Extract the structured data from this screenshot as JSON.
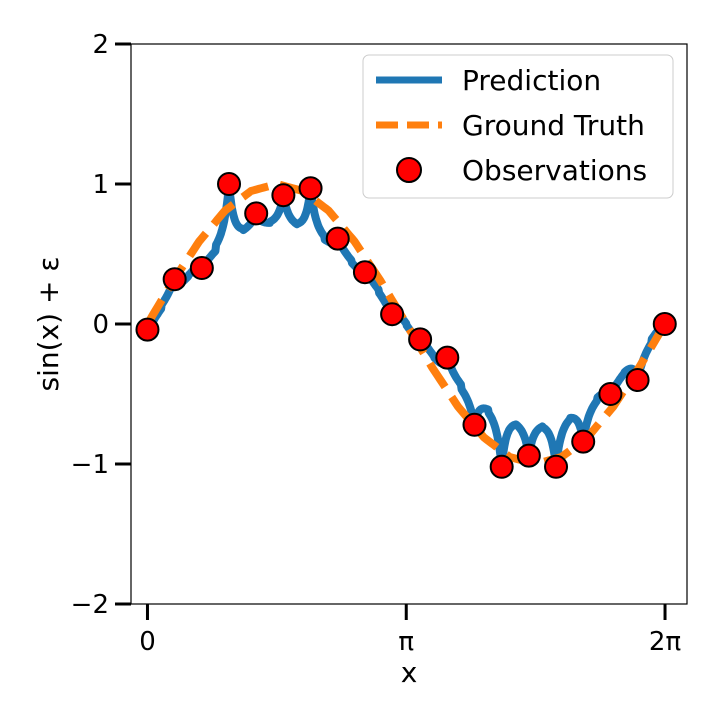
{
  "chart_data": {
    "type": "line",
    "xlabel": "x",
    "ylabel": "sin(x) + ε",
    "xlim": [
      -0.2,
      6.55
    ],
    "ylim": [
      -2,
      2
    ],
    "x_ticks": [
      {
        "value": 0,
        "label": "0"
      },
      {
        "value": 3.14159,
        "label": "π"
      },
      {
        "value": 6.28319,
        "label": "2π"
      }
    ],
    "y_ticks": [
      {
        "value": -2,
        "label": "−2"
      },
      {
        "value": -1,
        "label": "−1"
      },
      {
        "value": 0,
        "label": "0"
      },
      {
        "value": 1,
        "label": "1"
      },
      {
        "value": 2,
        "label": "2"
      }
    ],
    "legend": {
      "placement": "top-right",
      "entries": [
        {
          "label": "Prediction",
          "style": "line"
        },
        {
          "label": "Ground Truth",
          "style": "dashed"
        },
        {
          "label": "Observations",
          "style": "marker"
        }
      ]
    },
    "colors": {
      "prediction": "#1f77b4",
      "ground_truth": "#ff7f0e",
      "observations_fill": "#ff0000",
      "observations_edge": "#000000"
    },
    "series": [
      {
        "style": "line",
        "x": [
          0.0,
          0.314,
          0.628,
          0.942,
          1.257,
          1.571,
          1.885,
          2.199,
          2.513,
          2.827,
          3.142,
          3.456,
          3.77,
          4.084,
          4.398,
          4.712,
          5.027,
          5.341,
          5.655,
          5.969,
          6.283
        ],
        "y": [
          0.0,
          0.31,
          0.59,
          0.81,
          0.95,
          1.0,
          0.95,
          0.81,
          0.59,
          0.31,
          0.0,
          -0.31,
          -0.59,
          -0.81,
          -0.95,
          -1.0,
          -0.95,
          -0.81,
          -0.59,
          -0.31,
          0.0
        ]
      },
      {
        "style": "marker",
        "x": [
          0.0,
          0.33,
          0.66,
          0.99,
          1.32,
          1.65,
          1.98,
          2.31,
          2.64,
          2.97,
          3.31,
          3.64,
          3.97,
          4.3,
          4.63,
          4.96,
          5.29,
          5.62,
          5.95,
          6.28
        ],
        "y": [
          -0.04,
          0.32,
          0.4,
          1.0,
          0.79,
          0.92,
          0.97,
          0.61,
          0.37,
          0.07,
          -0.11,
          -0.24,
          -0.72,
          -1.02,
          -0.94,
          -1.02,
          -0.84,
          -0.5,
          -0.4,
          0.0
        ]
      }
    ]
  }
}
